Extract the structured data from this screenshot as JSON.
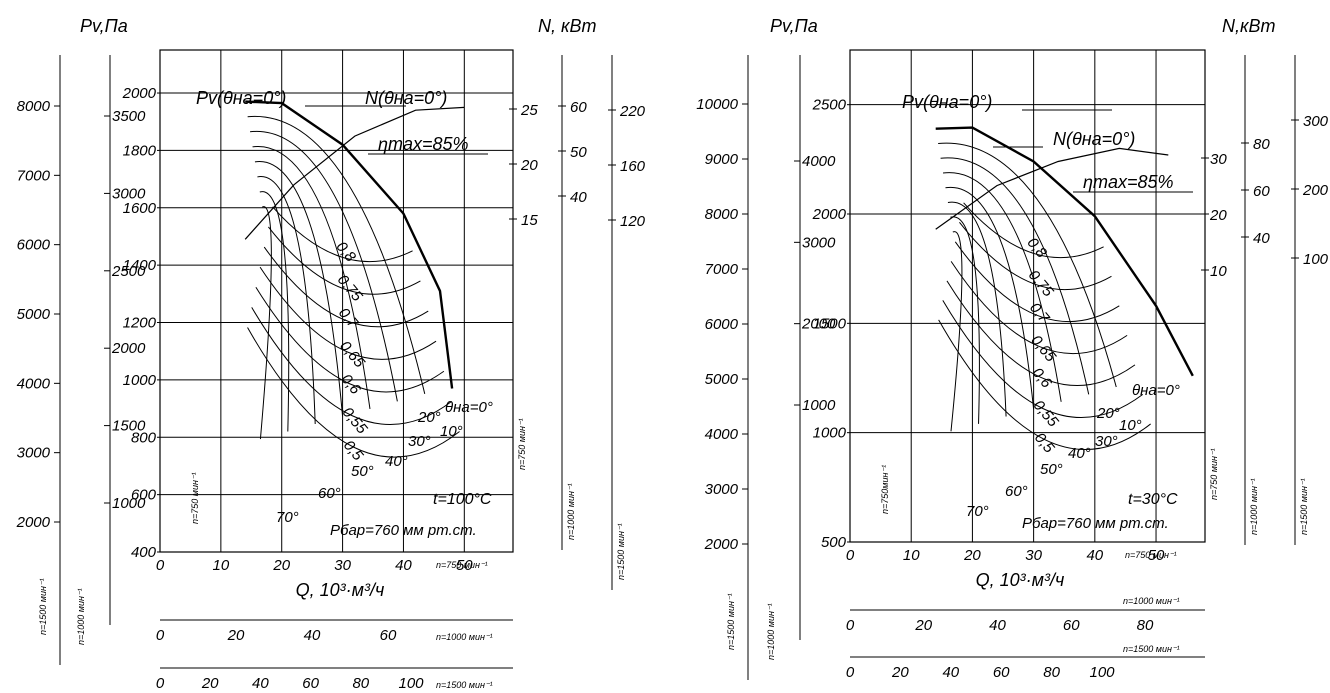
{
  "charts": [
    {
      "id": "left",
      "pv_title": "Pv,Па",
      "n_title": "N, кВт",
      "q_label": "Q, 10³·м³/ч",
      "temp_label": "t=100°C",
      "pressure_label": "Рбар=760 мм рт.ст.",
      "pv_curve_label": "Pv(θна=0°)",
      "n_curve_label": "N(θна=0°)",
      "eta_label": "ηmax=85%",
      "pv_main_ticks": [
        "400",
        "600",
        "800",
        "1000",
        "1200",
        "1400",
        "1600",
        "1800",
        "2000"
      ],
      "pv_1000_ticks": [
        "1000",
        "1500",
        "2000",
        "2500",
        "3000",
        "3500"
      ],
      "pv_1500_ticks": [
        "2000",
        "3000",
        "4000",
        "5000",
        "6000",
        "7000",
        "8000"
      ],
      "n_750_ticks": [
        "15",
        "20",
        "25"
      ],
      "n_1000_ticks": [
        "40",
        "50",
        "60"
      ],
      "n_1500_ticks": [
        "120",
        "160",
        "220"
      ],
      "q_750_ticks": [
        "0",
        "10",
        "20",
        "30",
        "40",
        "50"
      ],
      "q_1000_ticks": [
        "0",
        "20",
        "40",
        "60"
      ],
      "q_1500_ticks": [
        "0",
        "20",
        "40",
        "60",
        "80",
        "100"
      ],
      "rpm_labels": {
        "pv_1500": "n=1500 мин⁻¹",
        "pv_1000": "n=1000 мин⁻¹",
        "pv_750": "n=750 мин⁻¹",
        "n_750": "n=750 мин⁻¹",
        "n_1000": "n=1000 мин⁻¹",
        "n_1500": "n=1500 мин⁻¹",
        "q_750": "n=750 мин⁻¹",
        "q_1000": "n=1000 мин⁻¹",
        "q_1500": "n=1500 мин⁻¹"
      },
      "eff_labels": [
        "0,8",
        "0,75",
        "0,7",
        "0,65",
        "0,6",
        "0,55",
        "0,5"
      ],
      "angle_labels": [
        "θна=0°",
        "10°",
        "20°",
        "30°",
        "40°",
        "50°",
        "60°",
        "70°"
      ]
    },
    {
      "id": "right",
      "pv_title": "Pv,Па",
      "n_title": "N,кВт",
      "q_label": "Q, 10³·м³/ч",
      "temp_label": "t=30°C",
      "pressure_label": "Рбар=760 мм рт.ст.",
      "pv_curve_label": "Pv(θна=0°)",
      "n_curve_label": "N(θна=0°)",
      "eta_label": "ηmax=85%",
      "pv_main_ticks": [
        "500",
        "1000",
        "1500",
        "2000",
        "2500"
      ],
      "pv_1000_ticks": [
        "1000",
        "2000",
        "3000",
        "4000"
      ],
      "pv_1500_ticks": [
        "2000",
        "3000",
        "4000",
        "5000",
        "6000",
        "7000",
        "8000",
        "9000",
        "10000"
      ],
      "n_750_ticks": [
        "10",
        "20",
        "30"
      ],
      "n_1000_ticks": [
        "40",
        "60",
        "80"
      ],
      "n_1500_ticks": [
        "100",
        "200",
        "300"
      ],
      "q_750_ticks": [
        "0",
        "10",
        "20",
        "30",
        "40",
        "50"
      ],
      "q_1000_ticks": [
        "0",
        "20",
        "40",
        "60",
        "80"
      ],
      "q_1500_ticks": [
        "0",
        "20",
        "40",
        "60",
        "80",
        "100"
      ],
      "rpm_labels": {
        "pv_1500": "n=1500 мин⁻¹",
        "pv_1000": "n=1000 мин⁻¹",
        "pv_750": "n=750мин⁻¹",
        "n_750": "n=750 мин⁻¹",
        "n_1000": "n=1000 мин⁻¹",
        "n_1500": "n=1500 мин⁻¹",
        "q_750": "n=750 мин⁻¹",
        "q_1000": "n=1000 мин⁻¹",
        "q_1500": "n=1500 мин⁻¹"
      },
      "eff_labels": [
        "0,8",
        "0,75",
        "0,7",
        "0,65",
        "0,6",
        "0,55",
        "0,5"
      ],
      "angle_labels": [
        "θна=0°",
        "10°",
        "20°",
        "30°",
        "40°",
        "50°",
        "60°",
        "70°"
      ]
    }
  ],
  "chart_data": [
    {
      "type": "line",
      "xlabel": "Q, 10³·м³/ч",
      "ylabel": "Pv,Па",
      "xlim": [
        0,
        58
      ],
      "ylim": [
        400,
        2150
      ],
      "grid": true,
      "series": [
        {
          "name": "Pv(θна=0°)",
          "points": [
            [
              14,
              1970
            ],
            [
              20,
              1965
            ],
            [
              30,
              1820
            ],
            [
              40,
              1580
            ],
            [
              46,
              1310
            ],
            [
              48,
              970
            ]
          ]
        },
        {
          "name": "N(θна=0°)",
          "points": [
            [
              14,
              1490
            ],
            [
              22,
              1680
            ],
            [
              32,
              1850
            ],
            [
              42,
              1940
            ],
            [
              50,
              1950
            ]
          ]
        }
      ]
    },
    {
      "type": "line",
      "xlabel": "Q, 10³·м³/ч",
      "ylabel": "Pv,Па",
      "xlim": [
        0,
        58
      ],
      "ylim": [
        500,
        2750
      ],
      "grid": true,
      "series": [
        {
          "name": "Pv(θна=0°)",
          "points": [
            [
              14,
              2390
            ],
            [
              20,
              2395
            ],
            [
              30,
              2240
            ],
            [
              40,
              1990
            ],
            [
              50,
              1580
            ],
            [
              56,
              1260
            ]
          ]
        },
        {
          "name": "N(θна=0°)",
          "points": [
            [
              14,
              1930
            ],
            [
              24,
              2130
            ],
            [
              34,
              2240
            ],
            [
              44,
              2300
            ],
            [
              52,
              2270
            ]
          ]
        }
      ]
    }
  ]
}
